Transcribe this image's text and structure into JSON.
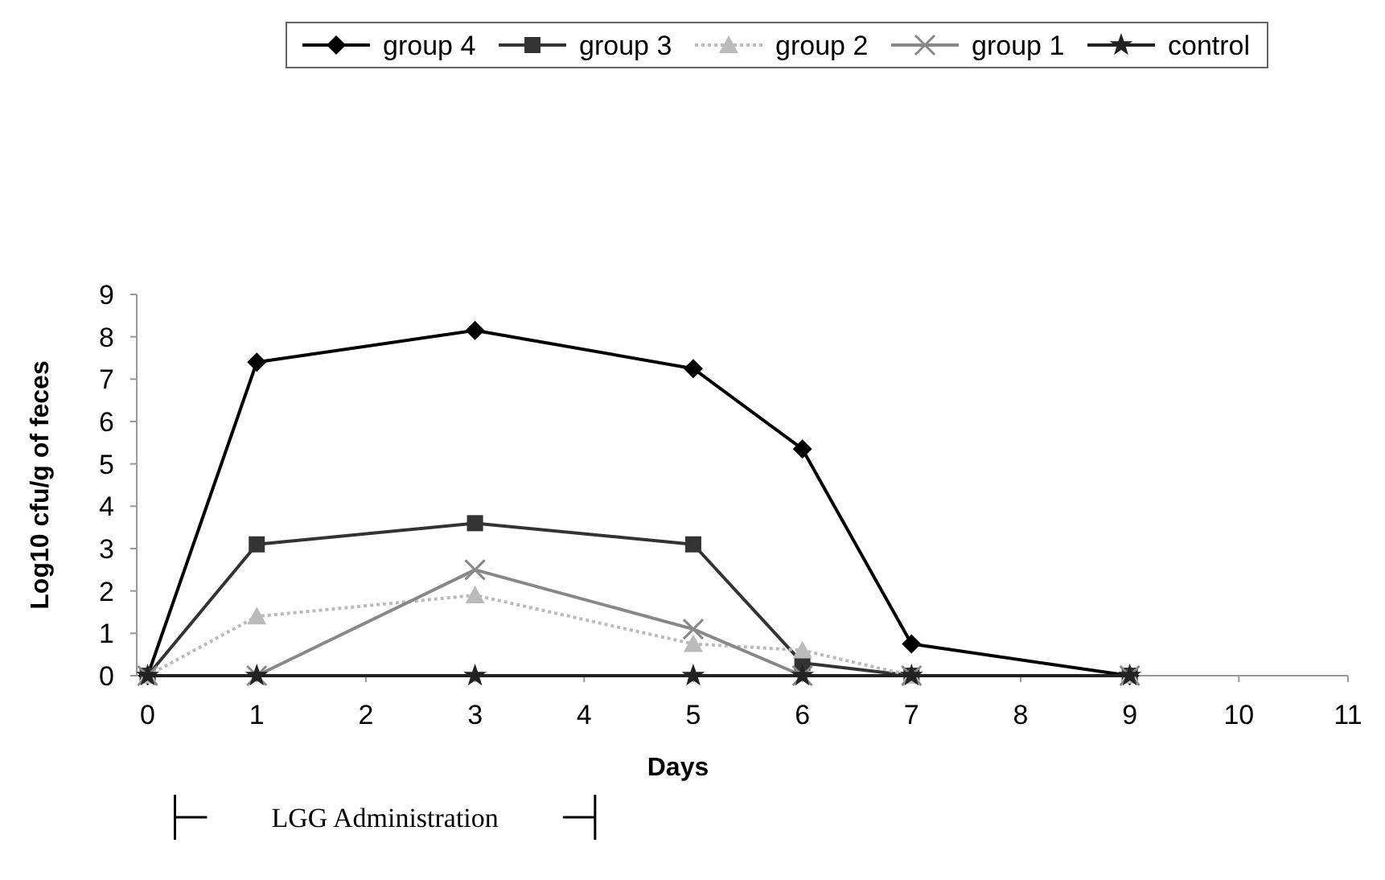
{
  "chart_data": {
    "type": "line",
    "xlabel": "Days",
    "ylabel": "Log10 cfu/g of feces",
    "x": [
      0,
      1,
      3,
      5,
      6,
      7,
      9
    ],
    "series": [
      {
        "name": "group 4",
        "color": "#000000",
        "marker": "diamond",
        "line_style": "solid",
        "values": [
          0,
          7.4,
          8.15,
          7.25,
          5.35,
          0.75,
          0
        ]
      },
      {
        "name": "group 3",
        "color": "#333333",
        "marker": "square",
        "line_style": "solid",
        "values": [
          0,
          3.1,
          3.6,
          3.1,
          0.3,
          0,
          0
        ]
      },
      {
        "name": "group 2",
        "color": "#bbbbbb",
        "marker": "triangle",
        "line_style": "dotted",
        "values": [
          0,
          1.4,
          1.9,
          0.75,
          0.6,
          0,
          0
        ]
      },
      {
        "name": "group 1",
        "color": "#888888",
        "marker": "cross",
        "line_style": "solid",
        "values": [
          0,
          0,
          2.5,
          1.1,
          0,
          0,
          0
        ]
      },
      {
        "name": "control",
        "color": "#222222",
        "marker": "star",
        "line_style": "solid",
        "values": [
          0,
          0,
          0,
          0,
          0,
          0,
          0
        ]
      }
    ],
    "xlim": [
      -0.1,
      11
    ],
    "xticks": [
      0,
      1,
      2,
      3,
      4,
      5,
      6,
      7,
      8,
      9,
      10,
      11
    ],
    "ylim": [
      0,
      9
    ],
    "yticks": [
      0,
      1,
      2,
      3,
      4,
      5,
      6,
      7,
      8,
      9
    ],
    "legend": "top",
    "grid": false,
    "annotations": [
      "LGG Administration"
    ]
  }
}
